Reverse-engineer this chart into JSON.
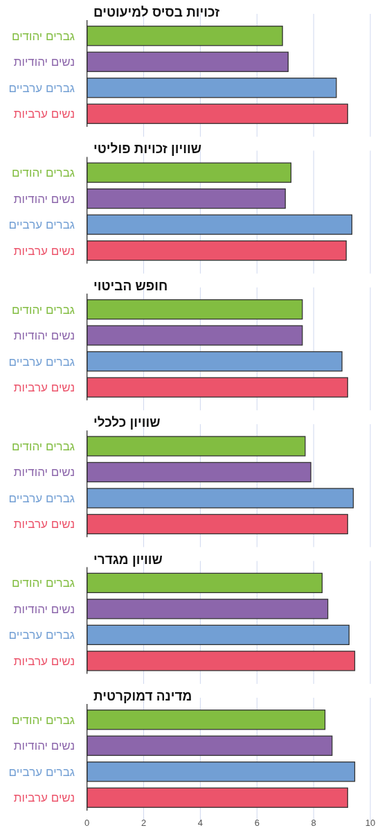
{
  "chart_data": [
    {
      "type": "bar",
      "orientation": "horizontal",
      "title": "זכויות בסיס למיעוטים",
      "categories": [
        "גברים יהודים",
        "נשים יהודיות",
        "גברים ערביים",
        "נשים ערביות"
      ],
      "values": [
        6.9,
        7.1,
        8.8,
        9.2
      ],
      "colors": [
        "#82bd41",
        "#8c66ab",
        "#729fd4",
        "#ec546b"
      ],
      "xlim": [
        0,
        10
      ],
      "xticks": [
        0,
        2,
        4,
        6,
        8,
        10
      ],
      "grid": "x",
      "tick_labels": "y"
    },
    {
      "type": "bar",
      "orientation": "horizontal",
      "title": "שוויון זכויות פוליטי",
      "categories": [
        "גברים יהודים",
        "נשים יהודיות",
        "גברים ערביים",
        "נשים ערביות"
      ],
      "values": [
        7.2,
        7.0,
        9.35,
        9.15
      ],
      "colors": [
        "#82bd41",
        "#8c66ab",
        "#729fd4",
        "#ec546b"
      ],
      "xlim": [
        0,
        10
      ],
      "xticks": [
        0,
        2,
        4,
        6,
        8,
        10
      ],
      "grid": "x",
      "tick_labels": "y"
    },
    {
      "type": "bar",
      "orientation": "horizontal",
      "title": "חופש הביטוי",
      "categories": [
        "גברים יהודים",
        "נשים יהודיות",
        "גברים ערביים",
        "נשים ערביות"
      ],
      "values": [
        7.6,
        7.6,
        9.0,
        9.2
      ],
      "colors": [
        "#82bd41",
        "#8c66ab",
        "#729fd4",
        "#ec546b"
      ],
      "xlim": [
        0,
        10
      ],
      "xticks": [
        0,
        2,
        4,
        6,
        8,
        10
      ],
      "grid": "x",
      "tick_labels": "y"
    },
    {
      "type": "bar",
      "orientation": "horizontal",
      "title": "שוויון כלכלי",
      "categories": [
        "גברים יהודים",
        "נשים יהודיות",
        "גברים ערביים",
        "נשים ערביות"
      ],
      "values": [
        7.7,
        7.9,
        9.4,
        9.2
      ],
      "colors": [
        "#82bd41",
        "#8c66ab",
        "#729fd4",
        "#ec546b"
      ],
      "xlim": [
        0,
        10
      ],
      "xticks": [
        0,
        2,
        4,
        6,
        8,
        10
      ],
      "grid": "x",
      "tick_labels": "y"
    },
    {
      "type": "bar",
      "orientation": "horizontal",
      "title": "שוויון מגדרי",
      "categories": [
        "גברים יהודים",
        "נשים יהודיות",
        "גברים ערביים",
        "נשים ערביות"
      ],
      "values": [
        8.3,
        8.5,
        9.25,
        9.45
      ],
      "colors": [
        "#82bd41",
        "#8c66ab",
        "#729fd4",
        "#ec546b"
      ],
      "xlim": [
        0,
        10
      ],
      "xticks": [
        0,
        2,
        4,
        6,
        8,
        10
      ],
      "grid": "x",
      "tick_labels": "y"
    },
    {
      "type": "bar",
      "orientation": "horizontal",
      "title": "מדינה דמוקרטית",
      "categories": [
        "גברים יהודים",
        "נשים יהודיות",
        "גברים ערביים",
        "נשים ערביות"
      ],
      "values": [
        8.4,
        8.65,
        9.45,
        9.2
      ],
      "colors": [
        "#82bd41",
        "#8c66ab",
        "#729fd4",
        "#ec546b"
      ],
      "xlim": [
        0,
        10
      ],
      "xticks": [
        0,
        2,
        4,
        6,
        8,
        10
      ],
      "grid": "x"
    }
  ]
}
